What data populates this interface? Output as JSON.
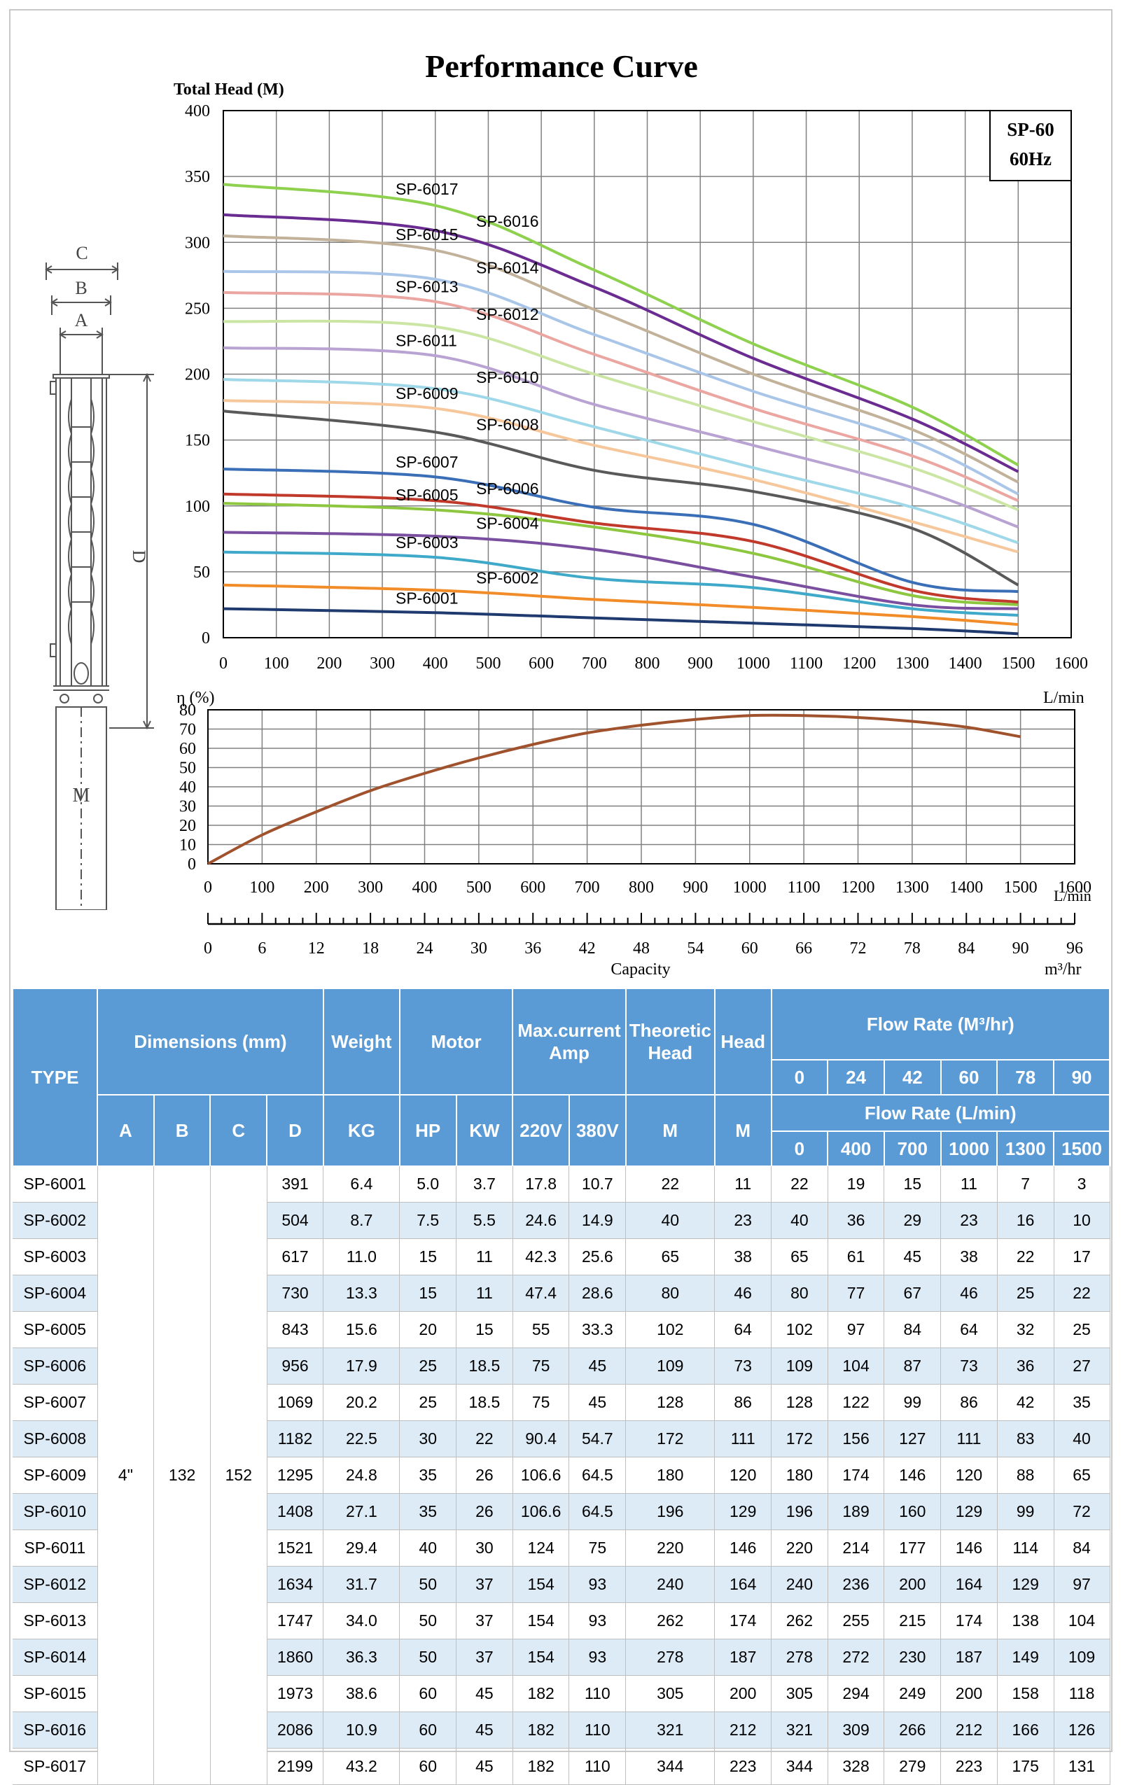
{
  "header": {
    "title": "Performance Curve",
    "model_box": [
      "SP-60",
      "60Hz"
    ]
  },
  "colors": {
    "grid": "#808080",
    "efficiency": "#a0522d",
    "table_header": "#5b9bd5",
    "table_stripe": "#ddebf7"
  },
  "chart_data": [
    {
      "type": "line",
      "title": "Performance Curve",
      "ylabel": "Total Head (M)",
      "xlabel": "L/min",
      "xlim": [
        0,
        1600
      ],
      "ylim": [
        0,
        400
      ],
      "x_ticks": [
        0,
        100,
        200,
        300,
        400,
        500,
        600,
        700,
        800,
        900,
        1000,
        1100,
        1200,
        1300,
        1400,
        1500,
        1600
      ],
      "y_ticks": [
        0,
        50,
        100,
        150,
        200,
        250,
        300,
        350,
        400
      ],
      "grid": true,
      "x": [
        0,
        400,
        700,
        1000,
        1300,
        1500
      ],
      "series": [
        {
          "name": "SP-6001",
          "color": "#1f3a6e",
          "values": [
            22,
            19,
            15,
            11,
            7,
            3
          ]
        },
        {
          "name": "SP-6002",
          "color": "#f28c28",
          "values": [
            40,
            36,
            29,
            23,
            16,
            10
          ]
        },
        {
          "name": "SP-6003",
          "color": "#3fa9c9",
          "values": [
            65,
            61,
            45,
            38,
            22,
            17
          ]
        },
        {
          "name": "SP-6004",
          "color": "#7a4fa0",
          "values": [
            80,
            77,
            67,
            46,
            25,
            22
          ]
        },
        {
          "name": "SP-6005",
          "color": "#8dc63f",
          "values": [
            102,
            97,
            84,
            64,
            32,
            25
          ]
        },
        {
          "name": "SP-6006",
          "color": "#c0392b",
          "values": [
            109,
            104,
            87,
            73,
            36,
            27
          ]
        },
        {
          "name": "SP-6007",
          "color": "#3a6fb7",
          "values": [
            128,
            122,
            99,
            86,
            42,
            35
          ]
        },
        {
          "name": "SP-6008",
          "color": "#595959",
          "values": [
            172,
            156,
            127,
            111,
            83,
            40
          ]
        },
        {
          "name": "SP-6009",
          "color": "#f6c79b",
          "values": [
            180,
            174,
            146,
            120,
            88,
            65
          ]
        },
        {
          "name": "SP-6010",
          "color": "#9fd8e8",
          "values": [
            196,
            189,
            160,
            129,
            99,
            72
          ]
        },
        {
          "name": "SP-6011",
          "color": "#b9a3d3",
          "values": [
            220,
            214,
            177,
            146,
            114,
            84
          ]
        },
        {
          "name": "SP-6012",
          "color": "#cbe6a4",
          "values": [
            240,
            236,
            200,
            164,
            129,
            97
          ]
        },
        {
          "name": "SP-6013",
          "color": "#eba6a1",
          "values": [
            262,
            255,
            215,
            174,
            138,
            104
          ]
        },
        {
          "name": "SP-6014",
          "color": "#a9c6e8",
          "values": [
            278,
            272,
            230,
            187,
            149,
            109
          ]
        },
        {
          "name": "SP-6015",
          "color": "#c2b29a",
          "values": [
            305,
            294,
            249,
            200,
            158,
            118
          ]
        },
        {
          "name": "SP-6016",
          "color": "#6a2c91",
          "values": [
            321,
            309,
            266,
            212,
            166,
            126
          ]
        },
        {
          "name": "SP-6017",
          "color": "#8ed14f",
          "values": [
            344,
            328,
            279,
            223,
            175,
            131
          ]
        }
      ]
    },
    {
      "type": "line",
      "ylabel": "η (%)",
      "xlabel": "L/min",
      "xlim": [
        0,
        1600
      ],
      "ylim": [
        0,
        80
      ],
      "x_ticks": [
        0,
        100,
        200,
        300,
        400,
        500,
        600,
        700,
        800,
        900,
        1000,
        1100,
        1200,
        1300,
        1400,
        1500,
        1600
      ],
      "y_ticks": [
        0,
        10,
        20,
        30,
        40,
        50,
        60,
        70,
        80
      ],
      "grid": true,
      "series": [
        {
          "x": [
            0,
            100,
            200,
            300,
            400,
            500,
            600,
            700,
            800,
            900,
            1000,
            1100,
            1200,
            1300,
            1400,
            1500
          ],
          "values": [
            0,
            15,
            27,
            38,
            47,
            55,
            62,
            68,
            72,
            75,
            77,
            77,
            76,
            74,
            71,
            66
          ]
        }
      ],
      "secondary_axis": {
        "label": "Capacity",
        "unit": "m³/hr",
        "ticks": [
          0,
          6,
          12,
          18,
          24,
          30,
          36,
          42,
          48,
          54,
          60,
          66,
          72,
          78,
          84,
          90,
          96
        ]
      }
    }
  ],
  "table": {
    "header": {
      "type": "TYPE",
      "dimensions": "Dimensions (mm)",
      "weight": "Weight",
      "motor": "Motor",
      "max_current": "Max.current Amp",
      "theoretic_head": "Theoretic Head",
      "head": "Head",
      "flow_m3": "Flow Rate    (M³/hr)",
      "flow_lmin": "Flow Rate    (L/min)",
      "sub": [
        "A",
        "B",
        "C",
        "D",
        "KG",
        "HP",
        "KW",
        "220V",
        "380V",
        "M",
        "M"
      ],
      "flow_m3_values": [
        "0",
        "24",
        "42",
        "60",
        "78",
        "90"
      ],
      "flow_lmin_values": [
        "0",
        "400",
        "700",
        "1000",
        "1300",
        "1500"
      ]
    },
    "common": {
      "A": "4\"",
      "B": "132",
      "C": "152"
    },
    "rows": [
      [
        "SP-6001",
        "391",
        "6.4",
        "5.0",
        "3.7",
        "17.8",
        "10.7",
        "22",
        "11",
        "22",
        "19",
        "15",
        "11",
        "7",
        "3"
      ],
      [
        "SP-6002",
        "504",
        "8.7",
        "7.5",
        "5.5",
        "24.6",
        "14.9",
        "40",
        "23",
        "40",
        "36",
        "29",
        "23",
        "16",
        "10"
      ],
      [
        "SP-6003",
        "617",
        "11.0",
        "15",
        "11",
        "42.3",
        "25.6",
        "65",
        "38",
        "65",
        "61",
        "45",
        "38",
        "22",
        "17"
      ],
      [
        "SP-6004",
        "730",
        "13.3",
        "15",
        "11",
        "47.4",
        "28.6",
        "80",
        "46",
        "80",
        "77",
        "67",
        "46",
        "25",
        "22"
      ],
      [
        "SP-6005",
        "843",
        "15.6",
        "20",
        "15",
        "55",
        "33.3",
        "102",
        "64",
        "102",
        "97",
        "84",
        "64",
        "32",
        "25"
      ],
      [
        "SP-6006",
        "956",
        "17.9",
        "25",
        "18.5",
        "75",
        "45",
        "109",
        "73",
        "109",
        "104",
        "87",
        "73",
        "36",
        "27"
      ],
      [
        "SP-6007",
        "1069",
        "20.2",
        "25",
        "18.5",
        "75",
        "45",
        "128",
        "86",
        "128",
        "122",
        "99",
        "86",
        "42",
        "35"
      ],
      [
        "SP-6008",
        "1182",
        "22.5",
        "30",
        "22",
        "90.4",
        "54.7",
        "172",
        "111",
        "172",
        "156",
        "127",
        "111",
        "83",
        "40"
      ],
      [
        "SP-6009",
        "1295",
        "24.8",
        "35",
        "26",
        "106.6",
        "64.5",
        "180",
        "120",
        "180",
        "174",
        "146",
        "120",
        "88",
        "65"
      ],
      [
        "SP-6010",
        "1408",
        "27.1",
        "35",
        "26",
        "106.6",
        "64.5",
        "196",
        "129",
        "196",
        "189",
        "160",
        "129",
        "99",
        "72"
      ],
      [
        "SP-6011",
        "1521",
        "29.4",
        "40",
        "30",
        "124",
        "75",
        "220",
        "146",
        "220",
        "214",
        "177",
        "146",
        "114",
        "84"
      ],
      [
        "SP-6012",
        "1634",
        "31.7",
        "50",
        "37",
        "154",
        "93",
        "240",
        "164",
        "240",
        "236",
        "200",
        "164",
        "129",
        "97"
      ],
      [
        "SP-6013",
        "1747",
        "34.0",
        "50",
        "37",
        "154",
        "93",
        "262",
        "174",
        "262",
        "255",
        "215",
        "174",
        "138",
        "104"
      ],
      [
        "SP-6014",
        "1860",
        "36.3",
        "50",
        "37",
        "154",
        "93",
        "278",
        "187",
        "278",
        "272",
        "230",
        "187",
        "149",
        "109"
      ],
      [
        "SP-6015",
        "1973",
        "38.6",
        "60",
        "45",
        "182",
        "110",
        "305",
        "200",
        "305",
        "294",
        "249",
        "200",
        "158",
        "118"
      ],
      [
        "SP-6016",
        "2086",
        "10.9",
        "60",
        "45",
        "182",
        "110",
        "321",
        "212",
        "321",
        "309",
        "266",
        "212",
        "166",
        "126"
      ],
      [
        "SP-6017",
        "2199",
        "43.2",
        "60",
        "45",
        "182",
        "110",
        "344",
        "223",
        "344",
        "328",
        "279",
        "223",
        "175",
        "131"
      ]
    ]
  },
  "drawing": {
    "labels": [
      "C",
      "B",
      "A",
      "D",
      "M"
    ]
  }
}
